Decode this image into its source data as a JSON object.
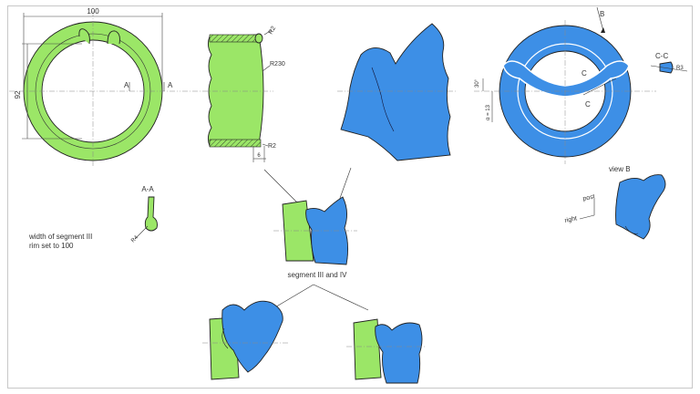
{
  "colors": {
    "green": "#9be667",
    "blue": "#3d8fe6",
    "outline": "#222222"
  },
  "labels": {
    "dim_width": "100",
    "dim_height": "92",
    "section_mark_left": "A",
    "section_mark_right": "A",
    "radius_top": "R2",
    "radius_side": "R230",
    "radius_bottom": "R2",
    "dim_thickness": "6",
    "section_aa_title": "A-A",
    "section_aa_radius": "R4",
    "note_line1": "width of segment III",
    "note_line2": "rim set to 100",
    "segment_caption": "segment III and IV",
    "view_mark_b": "B",
    "dim_30": "30°",
    "dim_alpha": "α = 13",
    "mark_c1": "C",
    "mark_c2": "C",
    "section_cc_title": "C-C",
    "section_cc_radius": "R3",
    "view_b_title": "view B",
    "axis_post": "post",
    "axis_right": "right"
  }
}
